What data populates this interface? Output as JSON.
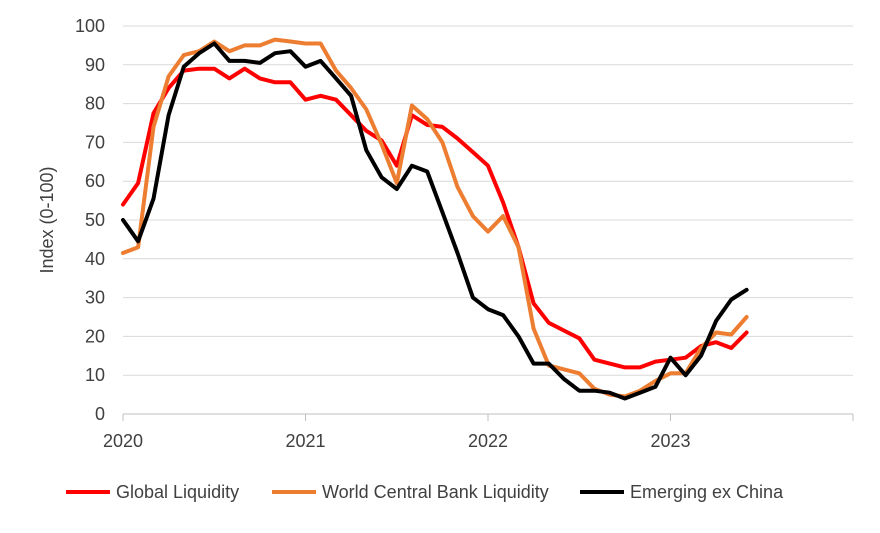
{
  "chart_data": {
    "type": "line",
    "ylabel": "Index (0-100)",
    "xlabel": "",
    "title": "",
    "ylim": [
      0,
      100
    ],
    "yticks": [
      0,
      10,
      20,
      30,
      40,
      50,
      60,
      70,
      80,
      90,
      100
    ],
    "xlim": [
      2020.0,
      2024.0
    ],
    "xticks": [
      {
        "value": 2020.0,
        "label": "2020"
      },
      {
        "value": 2021.0,
        "label": "2021"
      },
      {
        "value": 2022.0,
        "label": "2022"
      },
      {
        "value": 2023.0,
        "label": "2023"
      }
    ],
    "grid": "horizontal",
    "legend": "bottom",
    "series": [
      {
        "name": "Global Liquidity",
        "color": "#ff0000",
        "x": [
          2020.0,
          2020.083,
          2020.167,
          2020.25,
          2020.333,
          2020.417,
          2020.5,
          2020.583,
          2020.667,
          2020.75,
          2020.833,
          2020.917,
          2021.0,
          2021.083,
          2021.167,
          2021.25,
          2021.333,
          2021.417,
          2021.5,
          2021.583,
          2021.667,
          2021.75,
          2021.833,
          2021.917,
          2022.0,
          2022.083,
          2022.167,
          2022.25,
          2022.333,
          2022.417,
          2022.5,
          2022.583,
          2022.667,
          2022.75,
          2022.833,
          2022.917,
          2023.0,
          2023.083,
          2023.167,
          2023.25,
          2023.333,
          2023.417
        ],
        "y": [
          54,
          59.5,
          77.5,
          84,
          88.5,
          89,
          89,
          86.5,
          89,
          86.5,
          85.5,
          85.5,
          81,
          82,
          81,
          77,
          73,
          70.5,
          64,
          77,
          74.5,
          74,
          71,
          67.5,
          64,
          54.5,
          43,
          28.5,
          23.5,
          21.5,
          19.5,
          14,
          13,
          12,
          12,
          13.5,
          14,
          14.5,
          17.5,
          18.5,
          17,
          21
        ]
      },
      {
        "name": "World Central Bank Liquidity",
        "color": "#ed7d31",
        "x": [
          2020.0,
          2020.083,
          2020.167,
          2020.25,
          2020.333,
          2020.417,
          2020.5,
          2020.583,
          2020.667,
          2020.75,
          2020.833,
          2020.917,
          2021.0,
          2021.083,
          2021.167,
          2021.25,
          2021.333,
          2021.417,
          2021.5,
          2021.583,
          2021.667,
          2021.75,
          2021.833,
          2021.917,
          2022.0,
          2022.083,
          2022.167,
          2022.25,
          2022.333,
          2022.417,
          2022.5,
          2022.583,
          2022.667,
          2022.75,
          2022.833,
          2022.917,
          2023.0,
          2023.083,
          2023.167,
          2023.25,
          2023.333,
          2023.417
        ],
        "y": [
          41.5,
          43,
          74,
          87,
          92.5,
          93.5,
          96,
          93.5,
          95,
          95,
          96.5,
          96,
          95.5,
          95.5,
          88.5,
          84,
          78.5,
          69.5,
          59.5,
          79.5,
          76,
          70,
          58.5,
          51,
          47,
          51,
          43,
          22,
          12.5,
          11.5,
          10.5,
          6.5,
          5,
          4.5,
          6,
          8.5,
          10.5,
          10.5,
          17,
          21,
          20.5,
          25
        ]
      },
      {
        "name": "Emerging ex China",
        "color": "#000000",
        "x": [
          2020.0,
          2020.083,
          2020.167,
          2020.25,
          2020.333,
          2020.417,
          2020.5,
          2020.583,
          2020.667,
          2020.75,
          2020.833,
          2020.917,
          2021.0,
          2021.083,
          2021.167,
          2021.25,
          2021.333,
          2021.417,
          2021.5,
          2021.583,
          2021.667,
          2021.75,
          2021.833,
          2021.917,
          2022.0,
          2022.083,
          2022.167,
          2022.25,
          2022.333,
          2022.417,
          2022.5,
          2022.583,
          2022.667,
          2022.75,
          2022.833,
          2022.917,
          2023.0,
          2023.083,
          2023.167,
          2023.25,
          2023.333,
          2023.417
        ],
        "y": [
          50,
          44.5,
          55.5,
          77,
          89.5,
          93,
          95.5,
          91,
          91,
          90.5,
          93,
          93.5,
          89.5,
          91,
          86.5,
          82,
          68,
          61,
          58,
          64,
          62.5,
          52,
          41.5,
          30,
          27,
          25.5,
          20,
          13,
          13,
          9,
          6,
          6,
          5.5,
          4,
          5.5,
          7,
          14.5,
          10,
          15,
          24,
          29.5,
          32
        ]
      }
    ]
  }
}
